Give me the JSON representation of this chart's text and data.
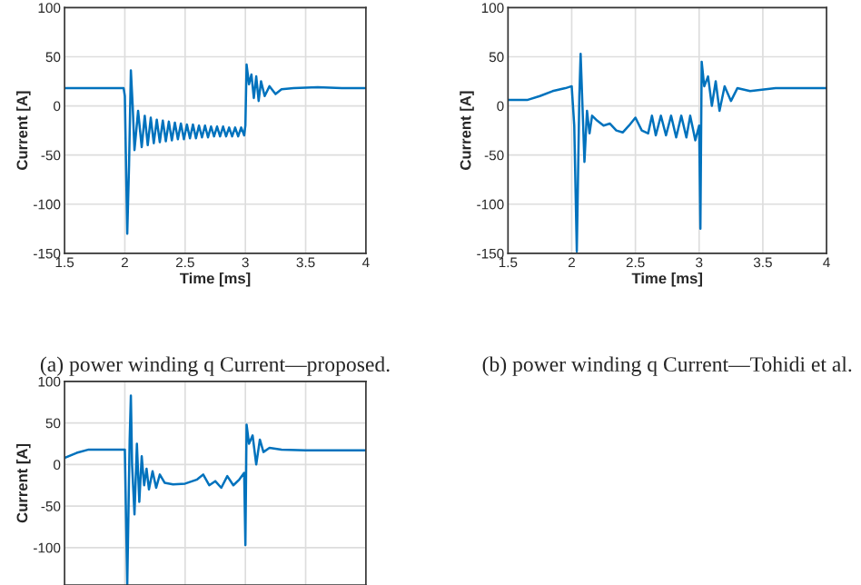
{
  "chart_data": [
    {
      "type": "line",
      "xlabel": "Time [ms]",
      "ylabel": "Current [A]",
      "xlim": [
        1.5,
        4
      ],
      "ylim": [
        -150,
        100
      ],
      "xticks": [
        1.5,
        2,
        2.5,
        3,
        3.5,
        4
      ],
      "yticks": [
        -150,
        -100,
        -50,
        0,
        50,
        100
      ],
      "grid": true,
      "annotations": [
        "(a) power winding q Current—proposed."
      ],
      "series": [
        {
          "color": "#0072bd",
          "x": [
            1.5,
            1.7,
            1.9,
            1.99,
            2.0,
            2.02,
            2.035,
            2.05,
            2.065,
            2.08,
            2.11,
            2.14,
            2.165,
            2.19,
            2.215,
            2.24,
            2.265,
            2.29,
            2.315,
            2.34,
            2.365,
            2.39,
            2.415,
            2.44,
            2.465,
            2.49,
            2.515,
            2.54,
            2.565,
            2.59,
            2.615,
            2.64,
            2.665,
            2.69,
            2.715,
            2.74,
            2.765,
            2.79,
            2.815,
            2.84,
            2.865,
            2.89,
            2.915,
            2.94,
            2.965,
            2.99,
            3.0,
            3.01,
            3.03,
            3.05,
            3.07,
            3.09,
            3.11,
            3.13,
            3.16,
            3.2,
            3.25,
            3.3,
            3.4,
            3.6,
            3.8,
            4.0
          ],
          "values": [
            18,
            18,
            18,
            18,
            10,
            -130,
            -60,
            36,
            0,
            -45,
            -5,
            -42,
            -10,
            -40,
            -12,
            -38,
            -14,
            -37,
            -15,
            -36,
            -16,
            -35,
            -17,
            -34,
            -18,
            -34,
            -19,
            -33,
            -19,
            -33,
            -20,
            -32,
            -20,
            -32,
            -21,
            -31,
            -21,
            -31,
            -21,
            -31,
            -22,
            -31,
            -22,
            -31,
            -22,
            -30,
            -20,
            42,
            22,
            32,
            8,
            30,
            5,
            25,
            10,
            20,
            12,
            17,
            18,
            19,
            18,
            18
          ]
        }
      ]
    },
    {
      "type": "line",
      "xlabel": "Time [ms]",
      "ylabel": "Current [A]",
      "xlim": [
        1.5,
        4
      ],
      "ylim": [
        -150,
        100
      ],
      "xticks": [
        1.5,
        2,
        2.5,
        3,
        3.5,
        4
      ],
      "yticks": [
        -150,
        -100,
        -50,
        0,
        50,
        100
      ],
      "grid": true,
      "annotations": [
        "(b) power winding q Current—Tohidi et al."
      ],
      "series": [
        {
          "color": "#0072bd",
          "x": [
            1.5,
            1.65,
            1.75,
            1.85,
            1.95,
            2.0,
            2.02,
            2.04,
            2.06,
            2.07,
            2.09,
            2.1,
            2.12,
            2.14,
            2.16,
            2.2,
            2.25,
            2.3,
            2.35,
            2.4,
            2.45,
            2.5,
            2.55,
            2.6,
            2.63,
            2.66,
            2.7,
            2.74,
            2.78,
            2.82,
            2.86,
            2.9,
            2.93,
            2.97,
            3.0,
            3.01,
            3.02,
            3.04,
            3.07,
            3.1,
            3.13,
            3.16,
            3.2,
            3.25,
            3.3,
            3.4,
            3.6,
            3.8,
            4.0
          ],
          "values": [
            6,
            6,
            10,
            15,
            18,
            20,
            -20,
            -148,
            10,
            53,
            -20,
            -57,
            -5,
            -28,
            -10,
            -15,
            -20,
            -18,
            -25,
            -27,
            -20,
            -12,
            -25,
            -28,
            -10,
            -30,
            -10,
            -30,
            -10,
            -32,
            -10,
            -32,
            -10,
            -35,
            -20,
            -125,
            45,
            20,
            30,
            0,
            25,
            -5,
            20,
            5,
            18,
            15,
            18,
            18,
            18
          ]
        }
      ]
    },
    {
      "type": "line",
      "ylabel": "Current [A]",
      "xlim": [
        1.5,
        4
      ],
      "ylim": [
        -145,
        100
      ],
      "xticks": [
        {
          "value": 1.5,
          "label": null
        },
        {
          "value": 2,
          "label": null
        },
        {
          "value": 2.5,
          "label": null
        },
        {
          "value": 3,
          "label": null
        },
        {
          "value": 3.5,
          "label": null
        },
        {
          "value": 4,
          "label": null
        }
      ],
      "yticks": [
        -100,
        -50,
        0,
        50,
        100
      ],
      "grid": true,
      "tick_labels": "y",
      "series": [
        {
          "color": "#0072bd",
          "x": [
            1.5,
            1.6,
            1.7,
            1.9,
            2.0,
            2.02,
            2.04,
            2.05,
            2.06,
            2.08,
            2.1,
            2.12,
            2.14,
            2.16,
            2.18,
            2.2,
            2.23,
            2.26,
            2.29,
            2.33,
            2.4,
            2.5,
            2.6,
            2.65,
            2.7,
            2.75,
            2.8,
            2.85,
            2.9,
            2.95,
            2.99,
            3.0,
            3.01,
            3.03,
            3.06,
            3.09,
            3.12,
            3.15,
            3.2,
            3.3,
            3.5,
            4.0
          ],
          "values": [
            8,
            14,
            18,
            18,
            18,
            -145,
            30,
            83,
            0,
            -60,
            25,
            -45,
            10,
            -25,
            -5,
            -30,
            -8,
            -28,
            -12,
            -22,
            -24,
            -23,
            -18,
            -12,
            -25,
            -20,
            -28,
            -14,
            -25,
            -18,
            -10,
            -97,
            48,
            25,
            35,
            0,
            30,
            15,
            20,
            18,
            17,
            17
          ]
        }
      ]
    }
  ]
}
